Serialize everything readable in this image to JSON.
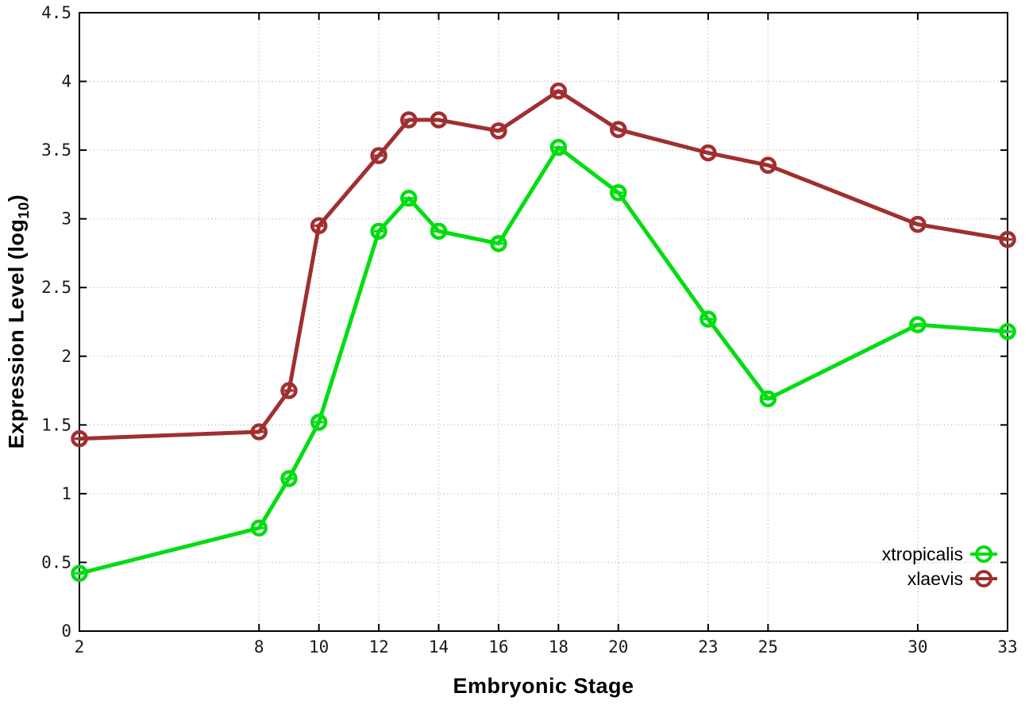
{
  "figure": {
    "xlabel": "Embryonic Stage",
    "ylabel_prefix": "Expression Level (log",
    "ylabel_sub": "10",
    "ylabel_suffix": ")",
    "background": "#ffffff"
  },
  "chart_data": {
    "type": "line",
    "x": [
      2,
      8,
      9,
      10,
      12,
      13,
      14,
      16,
      18,
      20,
      23,
      25,
      30,
      33
    ],
    "series": [
      {
        "name": "xtropicalis",
        "color": "#00dd11",
        "values": [
          0.42,
          0.75,
          1.11,
          1.52,
          2.91,
          3.15,
          2.91,
          2.82,
          3.52,
          3.19,
          2.27,
          1.69,
          2.23,
          2.18
        ]
      },
      {
        "name": "xlaevis",
        "color": "#a02f2f",
        "values": [
          1.4,
          1.45,
          1.75,
          2.95,
          3.46,
          3.72,
          3.72,
          3.64,
          3.93,
          3.65,
          3.48,
          3.39,
          2.96,
          2.85
        ]
      }
    ],
    "x_ticks": [
      2,
      8,
      10,
      12,
      14,
      16,
      18,
      20,
      23,
      25,
      30,
      33
    ],
    "y_ticks": [
      0,
      0.5,
      1,
      1.5,
      2,
      2.5,
      3,
      3.5,
      4,
      4.5
    ],
    "xlim": [
      2,
      33
    ],
    "ylim": [
      0,
      4.5
    ],
    "xlabel": "Embryonic Stage",
    "ylabel": "Expression Level (log10)",
    "title": "",
    "grid": true,
    "grid_style": "dotted",
    "grid_color": "#bdbdbd",
    "axis_color": "#000000",
    "tick_label_color": "#1a1a1a",
    "marker": "open-circle-with-center-dash",
    "legend_position": "inside-bottom-right",
    "legend_entries": [
      "xtropicalis",
      "xlaevis"
    ]
  }
}
